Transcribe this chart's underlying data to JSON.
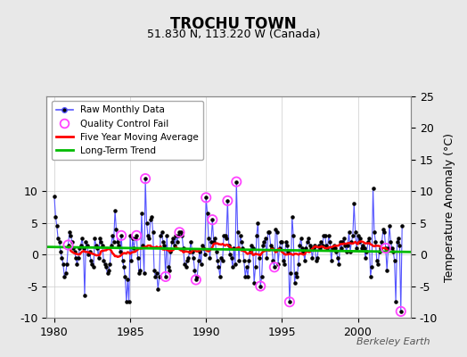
{
  "title": "TROCHU TOWN",
  "subtitle": "51.830 N, 113.220 W (Canada)",
  "ylabel": "Temperature Anomaly (°C)",
  "watermark": "Berkeley Earth",
  "xlim": [
    1979.5,
    2003.5
  ],
  "ylim": [
    -10,
    25
  ],
  "yticks_left": [
    -10,
    -5,
    0,
    5,
    10
  ],
  "yticks_right": [
    -10,
    -5,
    0,
    5,
    10,
    15,
    20,
    25
  ],
  "xticks": [
    1980,
    1985,
    1990,
    1995,
    2000
  ],
  "bg_color": "#e8e8e8",
  "plot_bg_color": "#ffffff",
  "raw_color": "#5555ff",
  "raw_marker_color": "#000000",
  "qc_color": "#ff44ff",
  "moving_avg_color": "#ff0000",
  "trend_color": "#00bb00",
  "raw_data": [
    1980.0,
    9.2,
    1980.083,
    6.0,
    1980.167,
    4.5,
    1980.25,
    2.5,
    1980.333,
    2.0,
    1980.417,
    0.5,
    1980.5,
    -0.5,
    1980.583,
    -1.5,
    1980.667,
    -3.5,
    1980.75,
    -3.0,
    1980.833,
    -1.5,
    1980.917,
    1.5,
    1981.0,
    3.5,
    1981.083,
    3.0,
    1981.167,
    2.0,
    1981.25,
    1.0,
    1981.333,
    0.5,
    1981.417,
    -0.5,
    1981.5,
    -1.5,
    1981.583,
    -0.5,
    1981.667,
    1.0,
    1981.75,
    1.5,
    1981.833,
    2.5,
    1981.917,
    1.0,
    1982.0,
    -6.5,
    1982.083,
    2.0,
    1982.167,
    1.5,
    1982.25,
    0.0,
    1982.333,
    0.5,
    1982.417,
    -1.0,
    1982.5,
    -1.5,
    1982.583,
    -2.0,
    1982.667,
    2.5,
    1982.75,
    1.5,
    1982.833,
    1.0,
    1982.917,
    -0.5,
    1983.0,
    2.5,
    1983.083,
    2.0,
    1983.167,
    1.5,
    1983.25,
    -1.0,
    1983.333,
    -1.5,
    1983.417,
    -2.0,
    1983.5,
    -3.0,
    1983.583,
    -2.5,
    1983.667,
    -1.5,
    1983.75,
    1.5,
    1983.833,
    3.0,
    1983.917,
    2.0,
    1984.0,
    7.0,
    1984.083,
    4.0,
    1984.167,
    2.0,
    1984.25,
    1.5,
    1984.333,
    0.5,
    1984.417,
    3.0,
    1984.5,
    -1.0,
    1984.583,
    -2.0,
    1984.667,
    -3.5,
    1984.75,
    -7.5,
    1984.833,
    -4.0,
    1984.917,
    -7.5,
    1985.0,
    3.0,
    1985.083,
    -1.0,
    1985.167,
    2.5,
    1985.25,
    1.0,
    1985.333,
    2.5,
    1985.417,
    3.0,
    1985.5,
    -0.5,
    1985.583,
    -3.0,
    1985.667,
    -2.5,
    1985.75,
    6.5,
    1985.833,
    1.5,
    1985.917,
    -3.0,
    1986.0,
    12.0,
    1986.083,
    5.0,
    1986.167,
    3.0,
    1986.25,
    2.5,
    1986.333,
    5.5,
    1986.417,
    6.0,
    1986.5,
    3.5,
    1986.583,
    -2.5,
    1986.667,
    -3.5,
    1986.75,
    -3.0,
    1986.833,
    -5.5,
    1986.917,
    -3.5,
    1987.0,
    3.0,
    1987.083,
    3.5,
    1987.167,
    2.0,
    1987.25,
    1.5,
    1987.333,
    -3.5,
    1987.417,
    3.0,
    1987.5,
    -2.0,
    1987.583,
    -2.5,
    1987.667,
    0.5,
    1987.75,
    2.0,
    1987.833,
    2.5,
    1987.917,
    1.5,
    1988.0,
    3.0,
    1988.083,
    2.0,
    1988.167,
    3.0,
    1988.25,
    3.5,
    1988.333,
    3.5,
    1988.417,
    3.0,
    1988.5,
    1.0,
    1988.583,
    -1.5,
    1988.667,
    -2.0,
    1988.75,
    -1.0,
    1988.833,
    -0.5,
    1988.917,
    0.5,
    1989.0,
    2.0,
    1989.083,
    0.5,
    1989.167,
    -0.5,
    1989.25,
    -2.5,
    1989.333,
    -4.0,
    1989.417,
    -3.5,
    1989.5,
    -1.0,
    1989.583,
    0.5,
    1989.667,
    -1.5,
    1989.75,
    1.5,
    1989.833,
    1.0,
    1989.917,
    0.0,
    1990.0,
    9.0,
    1990.083,
    6.5,
    1990.167,
    2.5,
    1990.25,
    -0.5,
    1990.333,
    2.0,
    1990.417,
    5.5,
    1990.5,
    2.0,
    1990.583,
    2.5,
    1990.667,
    0.5,
    1990.75,
    -1.0,
    1990.833,
    -2.0,
    1990.917,
    -3.5,
    1991.0,
    -0.5,
    1991.083,
    -1.0,
    1991.167,
    3.0,
    1991.25,
    3.0,
    1991.333,
    2.5,
    1991.417,
    8.5,
    1991.5,
    1.5,
    1991.583,
    0.0,
    1991.667,
    -0.5,
    1991.75,
    -2.0,
    1991.833,
    1.0,
    1991.917,
    -1.5,
    1992.0,
    11.5,
    1992.083,
    3.5,
    1992.167,
    -1.0,
    1992.25,
    3.0,
    1992.333,
    2.0,
    1992.417,
    1.0,
    1992.5,
    -1.0,
    1992.583,
    -3.5,
    1992.667,
    -2.0,
    1992.75,
    -3.5,
    1992.833,
    -1.0,
    1992.917,
    0.5,
    1993.0,
    1.5,
    1993.083,
    1.0,
    1993.167,
    -4.5,
    1993.25,
    -2.0,
    1993.333,
    3.0,
    1993.417,
    5.0,
    1993.5,
    -0.5,
    1993.583,
    -5.0,
    1993.667,
    -3.5,
    1993.75,
    1.5,
    1993.833,
    2.0,
    1993.917,
    2.5,
    1994.0,
    -0.5,
    1994.083,
    3.5,
    1994.167,
    3.5,
    1994.25,
    1.5,
    1994.333,
    1.0,
    1994.417,
    -1.0,
    1994.5,
    -2.0,
    1994.583,
    4.0,
    1994.667,
    3.5,
    1994.75,
    -1.5,
    1994.833,
    1.0,
    1994.917,
    2.0,
    1995.0,
    2.0,
    1995.083,
    -1.0,
    1995.167,
    -1.5,
    1995.25,
    2.0,
    1995.333,
    1.5,
    1995.417,
    0.5,
    1995.5,
    -7.5,
    1995.583,
    -3.0,
    1995.667,
    6.0,
    1995.75,
    3.0,
    1995.833,
    -4.5,
    1995.917,
    -3.0,
    1996.0,
    -3.5,
    1996.083,
    -1.5,
    1996.167,
    1.5,
    1996.25,
    2.5,
    1996.333,
    1.0,
    1996.417,
    0.5,
    1996.5,
    -1.0,
    1996.583,
    1.0,
    1996.667,
    2.0,
    1996.75,
    2.5,
    1996.833,
    1.5,
    1996.917,
    1.0,
    1997.0,
    -0.5,
    1997.083,
    1.0,
    1997.167,
    1.5,
    1997.25,
    -1.0,
    1997.333,
    -0.5,
    1997.417,
    1.5,
    1997.5,
    1.0,
    1997.583,
    2.0,
    1997.667,
    1.5,
    1997.75,
    3.0,
    1997.833,
    3.0,
    1997.917,
    1.5,
    1998.0,
    1.0,
    1998.083,
    3.0,
    1998.167,
    2.0,
    1998.25,
    -1.0,
    1998.333,
    1.0,
    1998.417,
    1.5,
    1998.5,
    1.0,
    1998.583,
    0.5,
    1998.667,
    -0.5,
    1998.75,
    -1.5,
    1998.833,
    2.0,
    1998.917,
    1.0,
    1999.0,
    2.0,
    1999.083,
    2.5,
    1999.167,
    1.5,
    1999.25,
    0.5,
    1999.333,
    1.5,
    1999.417,
    3.5,
    1999.5,
    0.5,
    1999.583,
    2.0,
    1999.667,
    3.0,
    1999.75,
    8.0,
    1999.833,
    3.5,
    1999.917,
    1.0,
    2000.0,
    3.0,
    2000.083,
    2.0,
    2000.167,
    2.5,
    2000.25,
    1.0,
    2000.333,
    1.5,
    2000.417,
    1.0,
    2000.5,
    -0.5,
    2000.583,
    0.5,
    2000.667,
    2.0,
    2000.75,
    2.5,
    2000.833,
    -3.5,
    2000.917,
    -2.0,
    2001.0,
    10.5,
    2001.083,
    3.5,
    2001.167,
    2.0,
    2001.25,
    -1.0,
    2001.333,
    -1.5,
    2001.417,
    0.5,
    2001.5,
    1.0,
    2001.583,
    2.0,
    2001.667,
    4.0,
    2001.75,
    3.5,
    2001.833,
    1.0,
    2001.917,
    -2.5,
    2002.0,
    1.0,
    2002.083,
    4.5,
    2002.167,
    2.0,
    2002.25,
    1.0,
    2002.333,
    0.5,
    2002.417,
    -1.0,
    2002.5,
    -7.5,
    2002.583,
    2.0,
    2002.667,
    2.5,
    2002.75,
    1.5,
    2002.833,
    -9.0,
    2002.917,
    4.5
  ],
  "qc_fail_points": [
    [
      1980.917,
      1.5
    ],
    [
      1984.417,
      3.0
    ],
    [
      1985.417,
      3.0
    ],
    [
      1986.0,
      12.0
    ],
    [
      1987.333,
      -3.5
    ],
    [
      1988.25,
      3.5
    ],
    [
      1989.333,
      -4.0
    ],
    [
      1990.0,
      9.0
    ],
    [
      1990.417,
      5.5
    ],
    [
      1991.417,
      8.5
    ],
    [
      1992.0,
      11.5
    ],
    [
      1993.583,
      -5.0
    ],
    [
      1994.5,
      -2.0
    ],
    [
      1995.5,
      -7.5
    ],
    [
      2001.833,
      1.0
    ],
    [
      2002.833,
      -9.0
    ]
  ],
  "trend_x": [
    1979.5,
    2003.5
  ],
  "trend_y": [
    1.2,
    0.4
  ]
}
